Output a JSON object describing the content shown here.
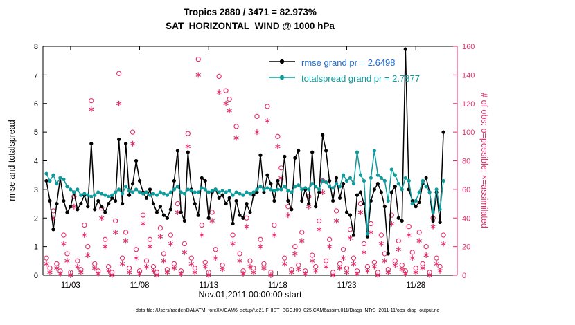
{
  "footer": {
    "datafile": "data file: /Users/raeder/DAI/ATM_forcXX/CAM6_setup/f.e21.FHIST_BGC.f09_025.CAM6assim.011/Diags_NTrS_2011-11/obs_diag_output.nc"
  },
  "chart_data": {
    "type": "line",
    "title": "Tropics 2880 / 3471 = 82.973%",
    "subtitle": "SAT_HORIZONTAL_WIND @ 1000 hPa",
    "xlabel": "Nov.01,2011 00:00:00 start",
    "ylabel_left": "rmse and totalspread",
    "ylabel_right": "# of obs: o=possible; ×=assimilated",
    "xlim": [
      0,
      30
    ],
    "ylim_left": [
      0,
      8
    ],
    "ylim_right": [
      0,
      160
    ],
    "yticks_left": [
      0,
      1,
      2,
      3,
      4,
      5,
      6,
      7,
      8
    ],
    "yticks_right": [
      0,
      20,
      40,
      60,
      80,
      100,
      120,
      140,
      160
    ],
    "xticks": [
      {
        "label": "11/03",
        "day": 2
      },
      {
        "label": "11/08",
        "day": 7
      },
      {
        "label": "11/13",
        "day": 12
      },
      {
        "label": "11/18",
        "day": 17
      },
      {
        "label": "11/23",
        "day": 22
      },
      {
        "label": "11/28",
        "day": 27
      }
    ],
    "x_days": {
      "start": 0.25,
      "step": 0.25,
      "count": 116
    },
    "colors": {
      "rmse": "#000000",
      "totalspread": "#0e9b9b",
      "obs": "#e22e68",
      "legend_rmse_text": "#1f6dd0",
      "legend_totalspread_text": "#0e9b9b"
    },
    "series": [
      {
        "name": "rmse grand pr = 2.6498",
        "values": [
          3.3,
          2.6,
          1.6,
          2.5,
          3.4,
          2.6,
          2.2,
          2.4,
          2.9,
          2.3,
          2.5,
          2.8,
          2.4,
          4.6,
          2.3,
          2.6,
          2.4,
          2.2,
          2.5,
          2.7,
          2.6,
          4.75,
          2.5,
          4.6,
          2.8,
          3.2,
          4.0,
          3.3,
          2.9,
          2.7,
          3.0,
          2.5,
          2.2,
          2.4,
          2.1,
          2.0,
          2.3,
          3.3,
          4.35,
          2.2,
          1.9,
          4.3,
          3.0,
          2.5,
          2.1,
          3.4,
          3.3,
          2.0,
          2.9,
          3.0,
          2.7,
          2.8,
          2.5,
          2.7,
          1.8,
          2.6,
          2.1,
          2.0,
          2.5,
          2.2,
          2.8,
          2.9,
          4.2,
          2.9,
          3.5,
          3.2,
          2.6,
          3.3,
          3.0,
          4.15,
          2.6,
          2.3,
          4.1,
          4.35,
          2.6,
          3.0,
          2.5,
          4.3,
          2.4,
          2.9,
          4.9,
          4.35,
          3.3,
          2.6,
          3.4,
          2.7,
          3.2,
          2.2,
          2.1,
          1.4,
          2.8,
          2.9,
          2.5,
          1.35,
          2.6,
          3.0,
          3.2,
          2.9,
          2.4,
          0.75,
          2.9,
          3.1,
          2.0,
          1.9,
          7.9,
          3.0,
          2.6,
          2.4,
          2.55,
          3.2,
          3.4,
          2.9,
          1.9,
          2.9,
          1.85,
          5.0
        ]
      },
      {
        "name": "totalspread grand pr = 2.7877",
        "values": [
          3.55,
          3.3,
          3.5,
          3.2,
          3.4,
          3.35,
          3.1,
          3.0,
          2.9,
          3.0,
          2.8,
          2.85,
          2.8,
          2.75,
          2.8,
          2.9,
          2.85,
          2.8,
          2.75,
          2.8,
          2.9,
          3.0,
          2.85,
          3.1,
          2.95,
          2.9,
          3.0,
          2.9,
          2.85,
          2.9,
          2.8,
          2.85,
          2.8,
          2.9,
          2.85,
          2.8,
          2.9,
          3.0,
          3.1,
          2.9,
          2.85,
          3.0,
          2.95,
          2.9,
          2.9,
          3.05,
          3.0,
          2.9,
          2.95,
          3.0,
          2.9,
          2.95,
          2.9,
          2.95,
          2.8,
          2.9,
          2.85,
          2.8,
          2.9,
          2.85,
          2.9,
          3.0,
          3.1,
          3.0,
          3.05,
          3.0,
          2.95,
          3.0,
          3.0,
          3.1,
          2.95,
          2.9,
          3.1,
          3.15,
          3.0,
          3.05,
          3.0,
          3.2,
          3.1,
          3.0,
          3.3,
          3.25,
          3.1,
          3.05,
          3.2,
          3.1,
          3.5,
          3.3,
          3.4,
          3.2,
          4.3,
          3.5,
          3.3,
          1.45,
          3.4,
          4.35,
          3.5,
          3.4,
          3.3,
          2.6,
          3.7,
          3.5,
          3.2,
          3.0,
          3.4,
          3.3,
          2.5,
          2.6,
          2.9,
          3.3,
          3.1,
          2.9,
          2.2,
          3.0,
          2.3,
          3.3
        ]
      }
    ],
    "obs_possible": [
      12,
      5,
      45,
      8,
      3,
      28,
      15,
      2,
      55,
      10,
      4,
      35,
      20,
      122,
      8,
      3,
      47,
      25,
      6,
      2,
      38,
      141,
      12,
      30,
      5,
      100,
      18,
      3,
      42,
      10,
      25,
      6,
      2,
      33,
      15,
      4,
      28,
      8,
      50,
      3,
      22,
      99,
      12,
      5,
      151,
      35,
      9,
      2,
      44,
      18,
      139,
      7,
      129,
      123,
      28,
      104,
      15,
      3,
      40,
      10,
      5,
      111,
      25,
      8,
      118,
      2,
      35,
      97,
      75,
      12,
      48,
      4,
      20,
      7,
      30,
      3,
      55,
      14,
      6,
      38,
      66,
      10,
      25,
      2,
      45,
      8,
      18,
      5,
      32,
      12,
      3,
      50,
      22,
      6,
      36,
      9,
      2,
      28,
      15,
      4,
      42,
      10,
      24,
      7,
      3,
      34,
      16,
      5,
      30,
      8,
      20,
      2,
      40,
      12,
      6,
      28
    ],
    "obs_assimilated": [
      8,
      2,
      40,
      5,
      1,
      22,
      10,
      0,
      48,
      6,
      2,
      28,
      14,
      116,
      5,
      1,
      40,
      20,
      3,
      0,
      30,
      120,
      8,
      24,
      2,
      92,
      12,
      1,
      36,
      6,
      20,
      3,
      0,
      27,
      10,
      2,
      22,
      5,
      44,
      1,
      16,
      90,
      8,
      2,
      140,
      28,
      6,
      0,
      38,
      12,
      128,
      4,
      120,
      115,
      22,
      96,
      10,
      1,
      34,
      6,
      2,
      100,
      20,
      5,
      108,
      0,
      28,
      90,
      68,
      8,
      42,
      2,
      15,
      4,
      24,
      1,
      48,
      10,
      3,
      32,
      58,
      6,
      20,
      0,
      38,
      5,
      12,
      2,
      26,
      8,
      1,
      44,
      16,
      3,
      30,
      6,
      0,
      22,
      10,
      2,
      36,
      7,
      18,
      4,
      1,
      28,
      12,
      2,
      24,
      5,
      14,
      0,
      34,
      8,
      3,
      22
    ]
  }
}
